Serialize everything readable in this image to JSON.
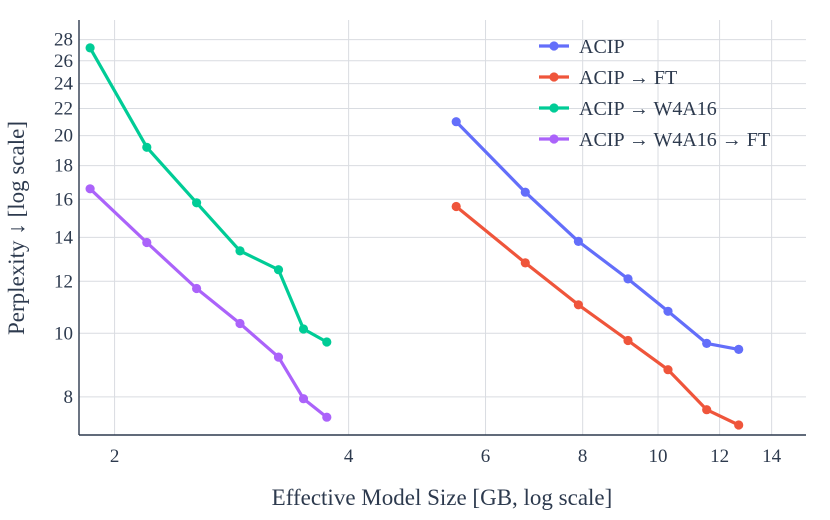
{
  "chart_data": {
    "type": "line",
    "title": "",
    "xlabel": "Effective Model Size [GB, log scale]",
    "ylabel": "Perplexity ↓ [log scale]",
    "xscale": "log",
    "yscale": "log",
    "xlim": [
      1.8,
      15.5
    ],
    "ylim": [
      7.0,
      30.0
    ],
    "xticks": [
      2,
      4,
      6,
      8,
      10,
      12,
      14
    ],
    "yticks": [
      8,
      10,
      12,
      14,
      16,
      18,
      20,
      22,
      24,
      26,
      28
    ],
    "grid": true,
    "legend_position": "top-right",
    "series": [
      {
        "name": "ACIP",
        "color": "#636efa",
        "x": [
          5.5,
          6.75,
          7.9,
          9.15,
          10.3,
          11.55,
          12.7
        ],
        "y": [
          21.0,
          16.4,
          13.8,
          12.1,
          10.8,
          9.65,
          9.45
        ]
      },
      {
        "name": "ACIP → FT",
        "color": "#ef553b",
        "x": [
          5.5,
          6.75,
          7.9,
          9.15,
          10.3,
          11.55,
          12.7
        ],
        "y": [
          15.6,
          12.8,
          11.05,
          9.75,
          8.8,
          7.65,
          7.25
        ]
      },
      {
        "name": "ACIP → W4A16",
        "color": "#00cc96",
        "x": [
          1.86,
          2.2,
          2.55,
          2.9,
          3.25,
          3.5,
          3.75
        ],
        "y": [
          27.2,
          19.2,
          15.8,
          13.35,
          12.5,
          10.15,
          9.7
        ]
      },
      {
        "name": "ACIP → W4A16 → FT",
        "color": "#ab63fa",
        "x": [
          1.86,
          2.2,
          2.55,
          2.9,
          3.25,
          3.5,
          3.75
        ],
        "y": [
          16.6,
          13.75,
          11.7,
          10.35,
          9.2,
          7.95,
          7.45
        ]
      }
    ]
  }
}
